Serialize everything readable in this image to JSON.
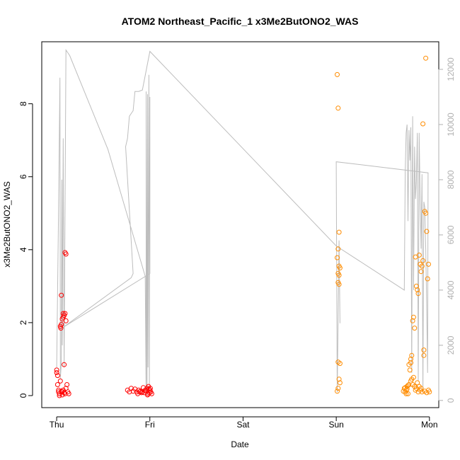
{
  "chart_data": {
    "type": "scatter",
    "title": "ATOM2 Northeast_Pacific_1 x3Me2ButONO2_WAS",
    "xlabel": "Date",
    "ylabel": "x3Me2ButONO2_WAS",
    "x_ticks": [
      {
        "label": "Thu",
        "day": 0
      },
      {
        "label": "Fri",
        "day": 1
      },
      {
        "label": "Sat",
        "day": 2
      },
      {
        "label": "Sun",
        "day": 3
      },
      {
        "label": "Mon",
        "day": 4
      }
    ],
    "xlim": [
      -0.16,
      4.1
    ],
    "ylim": [
      -0.33,
      9.7
    ],
    "y_ticks": [
      0,
      2,
      4,
      6,
      8
    ],
    "y2lim": [
      -260,
      13000
    ],
    "y2_ticks": [
      0,
      2000,
      4000,
      6000,
      8000,
      10000,
      12000
    ],
    "colors": {
      "red": "#ff0000",
      "orange": "#ff8c00",
      "line": "#bdbdbd",
      "axis": "#000000",
      "axis_right": "#b0b0b0"
    },
    "series": [
      {
        "color": "red",
        "points": [
          [
            0.0,
            0.7
          ],
          [
            0.0,
            0.63
          ],
          [
            0.01,
            0.55
          ],
          [
            0.01,
            0.3
          ],
          [
            0.02,
            0.15
          ],
          [
            0.02,
            0.1
          ],
          [
            0.03,
            0.05
          ],
          [
            0.03,
            0.0
          ],
          [
            0.04,
            0.4
          ],
          [
            0.04,
            1.9
          ],
          [
            0.045,
            1.85
          ],
          [
            0.05,
            2.75
          ],
          [
            0.05,
            1.95
          ],
          [
            0.06,
            2.1
          ],
          [
            0.06,
            0.1
          ],
          [
            0.07,
            2.25
          ],
          [
            0.07,
            2.15
          ],
          [
            0.08,
            2.2
          ],
          [
            0.08,
            0.85
          ],
          [
            0.09,
            3.92
          ],
          [
            0.09,
            0.05
          ],
          [
            0.1,
            3.88
          ],
          [
            0.1,
            0.2
          ],
          [
            0.09,
            2.25
          ],
          [
            0.11,
            0.3
          ],
          [
            0.12,
            0.1
          ],
          [
            0.13,
            0.05
          ],
          [
            0.07,
            0.15
          ],
          [
            0.05,
            0.12
          ],
          [
            0.1,
            2.05
          ],
          [
            0.06,
            0.02
          ],
          [
            0.08,
            0.08
          ],
          [
            0.76,
            0.15
          ],
          [
            0.78,
            0.1
          ],
          [
            0.8,
            0.2
          ],
          [
            0.82,
            0.12
          ],
          [
            0.84,
            0.18
          ],
          [
            0.86,
            0.1
          ],
          [
            0.88,
            0.15
          ],
          [
            0.9,
            0.12
          ],
          [
            0.92,
            0.1
          ],
          [
            0.94,
            0.08
          ],
          [
            0.95,
            0.15
          ],
          [
            0.96,
            0.12
          ],
          [
            0.97,
            0.2
          ],
          [
            0.98,
            0.05
          ],
          [
            0.99,
            0.18
          ],
          [
            1.0,
            0.15
          ],
          [
            1.01,
            0.1
          ],
          [
            1.02,
            0.05
          ],
          [
            0.93,
            0.22
          ],
          [
            0.91,
            0.08
          ],
          [
            0.89,
            0.1
          ],
          [
            0.87,
            0.05
          ],
          [
            0.985,
            0.25
          ],
          [
            0.995,
            0.08
          ],
          [
            0.975,
            0.02
          ],
          [
            1.005,
            0.2
          ]
        ]
      },
      {
        "color": "orange",
        "points": [
          [
            3.01,
            8.8
          ],
          [
            3.02,
            7.88
          ],
          [
            3.03,
            4.48
          ],
          [
            3.02,
            4.02
          ],
          [
            3.03,
            3.55
          ],
          [
            3.01,
            3.78
          ],
          [
            3.04,
            3.5
          ],
          [
            3.02,
            3.35
          ],
          [
            3.03,
            3.3
          ],
          [
            3.02,
            3.1
          ],
          [
            3.03,
            3.05
          ],
          [
            3.02,
            0.92
          ],
          [
            3.04,
            0.88
          ],
          [
            3.03,
            0.45
          ],
          [
            3.04,
            0.35
          ],
          [
            3.02,
            0.2
          ],
          [
            3.01,
            0.12
          ],
          [
            3.73,
            0.2
          ],
          [
            3.74,
            0.1
          ],
          [
            3.75,
            0.15
          ],
          [
            3.76,
            0.25
          ],
          [
            3.77,
            0.05
          ],
          [
            3.78,
            0.3
          ],
          [
            3.79,
            0.7
          ],
          [
            3.8,
            0.9
          ],
          [
            3.81,
            1.1
          ],
          [
            3.82,
            2.05
          ],
          [
            3.83,
            2.15
          ],
          [
            3.84,
            1.85
          ],
          [
            3.85,
            3.8
          ],
          [
            3.86,
            3.0
          ],
          [
            3.87,
            2.9
          ],
          [
            3.88,
            2.8
          ],
          [
            3.89,
            3.85
          ],
          [
            3.9,
            3.6
          ],
          [
            3.91,
            3.4
          ],
          [
            3.92,
            3.55
          ],
          [
            3.93,
            3.7
          ],
          [
            3.94,
            1.25
          ],
          [
            3.95,
            5.05
          ],
          [
            3.96,
            5.0
          ],
          [
            3.97,
            4.5
          ],
          [
            3.98,
            3.2
          ],
          [
            3.99,
            3.6
          ],
          [
            3.93,
            7.45
          ],
          [
            3.96,
            9.25
          ],
          [
            3.8,
            0.4
          ],
          [
            3.81,
            0.45
          ],
          [
            3.82,
            0.3
          ],
          [
            3.83,
            0.5
          ],
          [
            3.84,
            0.25
          ],
          [
            3.85,
            0.15
          ],
          [
            3.86,
            0.2
          ],
          [
            3.87,
            0.35
          ],
          [
            3.88,
            0.1
          ],
          [
            3.89,
            0.25
          ],
          [
            3.9,
            0.15
          ],
          [
            3.91,
            0.2
          ],
          [
            3.92,
            0.1
          ],
          [
            3.95,
            0.12
          ],
          [
            3.97,
            0.08
          ],
          [
            3.99,
            0.15
          ],
          [
            4.0,
            0.1
          ],
          [
            3.78,
            0.85
          ],
          [
            3.8,
            1.0
          ],
          [
            3.94,
            1.1
          ],
          [
            3.76,
            0.18
          ],
          [
            3.74,
            0.22
          ],
          [
            3.72,
            0.12
          ],
          [
            3.75,
            0.05
          ],
          [
            3.77,
            0.28
          ]
        ]
      }
    ],
    "line_series": {
      "axis": "right",
      "points": [
        [
          0.0,
          1200
        ],
        [
          0.02,
          6800
        ],
        [
          0.035,
          11700
        ],
        [
          0.04,
          800
        ],
        [
          0.05,
          1400
        ],
        [
          0.055,
          8000
        ],
        [
          0.06,
          2000
        ],
        [
          0.07,
          9500
        ],
        [
          0.08,
          1200
        ],
        [
          0.1,
          12700
        ],
        [
          0.12,
          12600
        ],
        [
          0.14,
          12500
        ],
        [
          0.55,
          9100
        ],
        [
          0.95,
          4500
        ],
        [
          0.96,
          200
        ],
        [
          0.96,
          11200
        ],
        [
          0.97,
          200
        ],
        [
          0.975,
          11100
        ],
        [
          0.98,
          1200
        ],
        [
          0.99,
          11800
        ],
        [
          0.995,
          200
        ],
        [
          1.0,
          11000
        ],
        [
          1.0,
          4600
        ],
        [
          0.07,
          2650
        ],
        [
          0.8,
          4450
        ],
        [
          0.82,
          4600
        ],
        [
          0.74,
          9200
        ],
        [
          0.76,
          9500
        ],
        [
          0.78,
          10300
        ],
        [
          0.8,
          10400
        ],
        [
          0.82,
          10500
        ],
        [
          0.84,
          11200
        ],
        [
          0.88,
          11200
        ],
        [
          0.92,
          11250
        ],
        [
          1.0,
          12650
        ],
        [
          3.0,
          5600
        ],
        [
          3.73,
          4000
        ],
        [
          3.74,
          8300
        ],
        [
          3.75,
          9700
        ],
        [
          3.76,
          10000
        ],
        [
          3.77,
          6500
        ],
        [
          3.78,
          9800
        ],
        [
          3.79,
          8700
        ],
        [
          3.8,
          9900
        ],
        [
          3.81,
          1000
        ],
        [
          3.82,
          10300
        ],
        [
          3.83,
          4000
        ],
        [
          3.84,
          9200
        ],
        [
          3.85,
          7300
        ],
        [
          3.86,
          8000
        ],
        [
          3.87,
          9700
        ],
        [
          3.88,
          700
        ],
        [
          3.89,
          9700
        ],
        [
          3.9,
          7200
        ],
        [
          3.91,
          5500
        ],
        [
          3.92,
          8200
        ],
        [
          3.93,
          300
        ],
        [
          3.94,
          7200
        ],
        [
          3.95,
          7000
        ],
        [
          3.96,
          5500
        ],
        [
          3.97,
          3500
        ],
        [
          3.98,
          1000
        ],
        [
          3.985,
          8250
        ],
        [
          3.0,
          8650
        ],
        [
          3.01,
          300
        ],
        [
          3.02,
          3000
        ],
        [
          3.03,
          5800
        ],
        [
          3.04,
          2800
        ]
      ]
    }
  }
}
